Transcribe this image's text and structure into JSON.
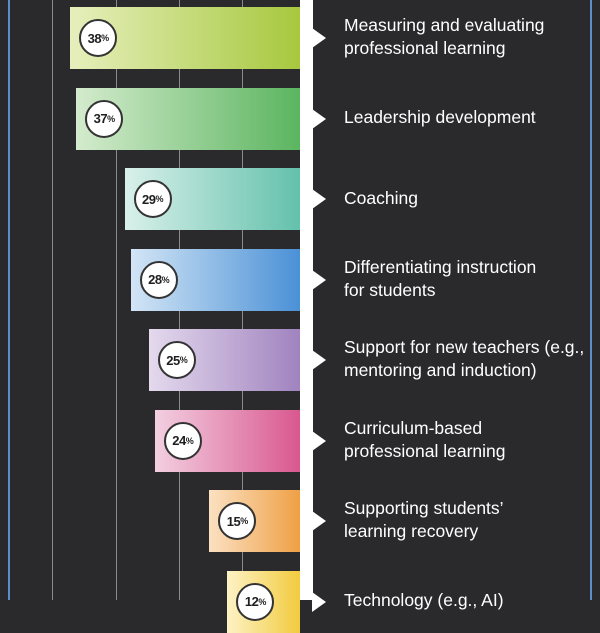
{
  "chart_data": {
    "type": "bar",
    "categories": [
      [
        "Measuring and evaluating",
        "professional learning"
      ],
      [
        "Leadership development"
      ],
      [
        "Coaching"
      ],
      [
        "Differentiating instruction",
        "for students"
      ],
      [
        "Support for new teachers (e.g.,",
        "mentoring and induction)"
      ],
      [
        "Curriculum-based",
        "professional learning"
      ],
      [
        "Supporting students’",
        "learning recovery"
      ],
      [
        "Technology (e.g., AI)"
      ]
    ],
    "values": [
      38,
      37,
      29,
      28,
      25,
      24,
      15,
      12
    ],
    "value_labels": [
      "38",
      "37",
      "29",
      "28",
      "25",
      "24",
      "15",
      "12"
    ],
    "value_suffix": "%",
    "xlim": [
      0,
      50
    ],
    "orientation": "horizontal-leftward",
    "grid": true,
    "colors": [
      [
        "#e6efbc",
        "#a7c83e"
      ],
      [
        "#d4ebcd",
        "#5bb560"
      ],
      [
        "#d9f0ea",
        "#63c1ac"
      ],
      [
        "#d3e5f5",
        "#4a91d6"
      ],
      [
        "#e4d9ed",
        "#a083bf"
      ],
      [
        "#f3cfe1",
        "#d9588f"
      ],
      [
        "#fbe1c2",
        "#efa045"
      ],
      [
        "#fdf2c4",
        "#f2cb3e"
      ]
    ]
  }
}
